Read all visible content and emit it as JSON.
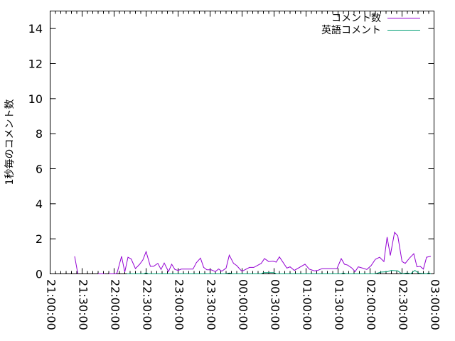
{
  "chart_data": {
    "type": "line",
    "title": "",
    "xlabel": "",
    "ylabel": "1秒毎のコメント数",
    "xlim": [
      "21:00:00",
      "03:00:00"
    ],
    "ylim": [
      0,
      15
    ],
    "grid": false,
    "legend_position": "top-right",
    "x_tick_labels": [
      "21:00:00",
      "21:30:00",
      "22:00:00",
      "22:30:00",
      "23:00:00",
      "23:30:00",
      "00:00:00",
      "00:30:00",
      "01:00:00",
      "01:30:00",
      "02:00:00",
      "02:30:00",
      "03:00:00"
    ],
    "y_tick_labels": [
      "0",
      "2",
      "4",
      "6",
      "8",
      "10",
      "12",
      "14"
    ],
    "series": [
      {
        "name": "コメント数",
        "color": "#9400d3",
        "points": [
          [
            "21:23",
            1.0
          ],
          [
            "21:26",
            0
          ],
          [
            null,
            null
          ],
          [
            "21:45",
            0
          ],
          [
            "21:51",
            0
          ],
          [
            null,
            null
          ],
          [
            "21:55",
            0
          ],
          [
            "22:02",
            0
          ],
          [
            "22:03",
            0.1
          ],
          [
            "22:07",
            1.0
          ],
          [
            "22:10",
            0.1
          ],
          [
            "22:13",
            0.95
          ],
          [
            "22:16",
            0.85
          ],
          [
            "22:20",
            0.3
          ],
          [
            "22:24",
            0.55
          ],
          [
            "22:27",
            0.8
          ],
          [
            "22:30",
            1.27
          ],
          [
            "22:34",
            0.43
          ],
          [
            "22:37",
            0.43
          ],
          [
            "22:41",
            0.6
          ],
          [
            "22:44",
            0.25
          ],
          [
            "22:47",
            0.62
          ],
          [
            "22:51",
            0.13
          ],
          [
            "22:54",
            0.55
          ],
          [
            "22:57",
            0.25
          ],
          [
            "23:00",
            0.2
          ],
          [
            "23:03",
            0.27
          ],
          [
            "23:14",
            0.27
          ],
          [
            "23:17",
            0.63
          ],
          [
            "23:21",
            0.9
          ],
          [
            "23:24",
            0.37
          ],
          [
            "23:27",
            0.23
          ],
          [
            "23:31",
            0.23
          ],
          [
            "23:35",
            0.13
          ],
          [
            "23:38",
            0.28
          ],
          [
            "23:41",
            0.15
          ],
          [
            "23:45",
            0.33
          ],
          [
            "23:48",
            1.07
          ],
          [
            "23:52",
            0.6
          ],
          [
            "23:55",
            0.47
          ],
          [
            "23:59",
            0.2
          ],
          [
            "00:00",
            0.15
          ],
          [
            "00:07",
            0.37
          ],
          [
            "00:11",
            0.37
          ],
          [
            "00:18",
            0.6
          ],
          [
            "00:21",
            0.87
          ],
          [
            "00:25",
            0.7
          ],
          [
            "00:29",
            0.73
          ],
          [
            "00:32",
            0.67
          ],
          [
            "00:35",
            0.97
          ],
          [
            "00:42",
            0.33
          ],
          [
            "00:45",
            0.4
          ],
          [
            "00:49",
            0.2
          ],
          [
            "00:59",
            0.55
          ],
          [
            "01:03",
            0.27
          ],
          [
            "01:08",
            0.17
          ],
          [
            "01:11",
            0.2
          ],
          [
            "01:15",
            0.3
          ],
          [
            "01:29",
            0.3
          ],
          [
            "01:33",
            0.87
          ],
          [
            "01:36",
            0.55
          ],
          [
            "01:39",
            0.5
          ],
          [
            "01:43",
            0.33
          ],
          [
            "01:46",
            0.13
          ],
          [
            "01:49",
            0.4
          ],
          [
            "01:53",
            0.33
          ],
          [
            "01:57",
            0.25
          ],
          [
            "02:01",
            0.47
          ],
          [
            "02:05",
            0.83
          ],
          [
            "02:09",
            0.95
          ],
          [
            "02:13",
            0.7
          ],
          [
            "02:16",
            2.1
          ],
          [
            "02:19",
            1.05
          ],
          [
            "02:23",
            2.37
          ],
          [
            "02:26",
            2.17
          ],
          [
            "02:30",
            0.7
          ],
          [
            "02:33",
            0.6
          ],
          [
            "02:37",
            0.9
          ],
          [
            "02:41",
            1.15
          ],
          [
            "02:44",
            0.4
          ],
          [
            "02:47",
            0.43
          ],
          [
            "02:50",
            0.27
          ],
          [
            "02:53",
            0.95
          ],
          [
            "02:57",
            1.0
          ]
        ]
      },
      {
        "name": "英語コメント",
        "color": "#009e73",
        "points": [
          [
            "22:12",
            0
          ],
          [
            "22:28",
            0
          ],
          [
            "22:30",
            0.07
          ],
          [
            "22:32",
            0
          ],
          [
            "23:45",
            0
          ],
          [
            "23:48",
            0.05
          ],
          [
            "23:51",
            0
          ],
          [
            "00:18",
            0
          ],
          [
            "00:20",
            0.07
          ],
          [
            "00:30",
            0.07
          ],
          [
            "00:32",
            0
          ],
          [
            "01:33",
            0
          ],
          [
            "01:35",
            0.05
          ],
          [
            "01:37",
            0
          ],
          [
            "02:05",
            0
          ],
          [
            "02:10",
            0.1
          ],
          [
            "02:16",
            0.12
          ],
          [
            "02:20",
            0.2
          ],
          [
            "02:26",
            0.17
          ],
          [
            "02:30",
            0
          ],
          [
            "02:35",
            0.05
          ],
          [
            "02:38",
            0
          ],
          [
            "02:42",
            0.2
          ],
          [
            "02:46",
            0.03
          ],
          [
            "02:53",
            0
          ],
          [
            "02:55",
            0.05
          ],
          [
            "02:57",
            0
          ]
        ]
      }
    ]
  }
}
